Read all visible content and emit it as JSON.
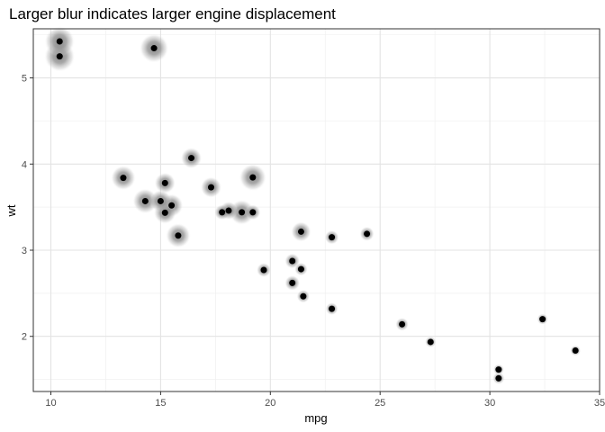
{
  "chart_data": {
    "type": "scatter",
    "title": "Larger blur indicates larger engine displacement",
    "xlabel": "mpg",
    "ylabel": "wt",
    "xlim": [
      9.2,
      35.0
    ],
    "ylim": [
      1.36,
      5.57
    ],
    "x_ticks": [
      10,
      15,
      20,
      25,
      30,
      35
    ],
    "y_ticks": [
      2,
      3,
      4,
      5
    ],
    "grid": true,
    "point_color": "#000000",
    "blur_color": "#7f7f7f",
    "size_variable": "engine displacement",
    "points": [
      {
        "x": 21.0,
        "y": 2.62,
        "disp": 160
      },
      {
        "x": 21.0,
        "y": 2.875,
        "disp": 160
      },
      {
        "x": 22.8,
        "y": 2.32,
        "disp": 108
      },
      {
        "x": 21.4,
        "y": 3.215,
        "disp": 258
      },
      {
        "x": 18.7,
        "y": 3.44,
        "disp": 360
      },
      {
        "x": 18.1,
        "y": 3.46,
        "disp": 225
      },
      {
        "x": 14.3,
        "y": 3.57,
        "disp": 360
      },
      {
        "x": 24.4,
        "y": 3.19,
        "disp": 146.7
      },
      {
        "x": 22.8,
        "y": 3.15,
        "disp": 140.8
      },
      {
        "x": 19.2,
        "y": 3.44,
        "disp": 167.6
      },
      {
        "x": 17.8,
        "y": 3.44,
        "disp": 167.6
      },
      {
        "x": 16.4,
        "y": 4.07,
        "disp": 275.8
      },
      {
        "x": 17.3,
        "y": 3.73,
        "disp": 275.8
      },
      {
        "x": 15.2,
        "y": 3.78,
        "disp": 275.8
      },
      {
        "x": 10.4,
        "y": 5.25,
        "disp": 472
      },
      {
        "x": 10.4,
        "y": 5.424,
        "disp": 460
      },
      {
        "x": 14.7,
        "y": 5.345,
        "disp": 440
      },
      {
        "x": 32.4,
        "y": 2.2,
        "disp": 78.7
      },
      {
        "x": 30.4,
        "y": 1.615,
        "disp": 75.7
      },
      {
        "x": 33.9,
        "y": 1.835,
        "disp": 71.1
      },
      {
        "x": 21.5,
        "y": 2.465,
        "disp": 120.1
      },
      {
        "x": 15.5,
        "y": 3.52,
        "disp": 318
      },
      {
        "x": 15.2,
        "y": 3.435,
        "disp": 304
      },
      {
        "x": 13.3,
        "y": 3.84,
        "disp": 350
      },
      {
        "x": 19.2,
        "y": 3.845,
        "disp": 400
      },
      {
        "x": 27.3,
        "y": 1.935,
        "disp": 79
      },
      {
        "x": 26.0,
        "y": 2.14,
        "disp": 120.3
      },
      {
        "x": 30.4,
        "y": 1.513,
        "disp": 95.1
      },
      {
        "x": 15.8,
        "y": 3.17,
        "disp": 351
      },
      {
        "x": 19.7,
        "y": 2.77,
        "disp": 145
      },
      {
        "x": 15.0,
        "y": 3.57,
        "disp": 301
      },
      {
        "x": 21.4,
        "y": 2.78,
        "disp": 121
      }
    ]
  }
}
